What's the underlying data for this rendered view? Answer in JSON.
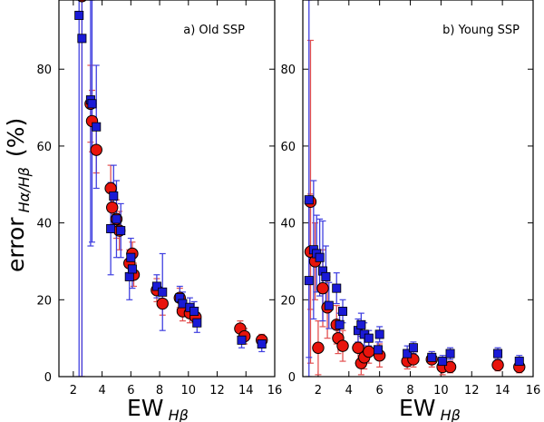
{
  "figure": {
    "ylabel_main": "error",
    "ylabel_sub": "Hα/Hβ",
    "ylabel_unit": "(%)",
    "xlabel_main": "EW",
    "xlabel_sub": "Hβ"
  },
  "colors": {
    "red": "#e8140c",
    "blue": "#1a1ad6",
    "redbar": "#e35050",
    "bluebar": "#4040e0"
  },
  "chart_data": [
    {
      "type": "scatter",
      "title": "a) Old SSP",
      "xlabel": "EW_Hβ",
      "ylabel": "error_Hα/Hβ (%)",
      "xlim": [
        1.0,
        16.0
      ],
      "ylim": [
        0,
        98
      ],
      "xticks": [
        2,
        4,
        6,
        8,
        10,
        12,
        14,
        16
      ],
      "yticks": [
        0,
        20,
        40,
        60,
        80
      ],
      "series": [
        {
          "name": "red circles",
          "marker": "circle",
          "points": [
            {
              "x": 2.6,
              "y": 99,
              "err": 99
            },
            {
              "x": 3.2,
              "y": 71,
              "err": 10
            },
            {
              "x": 3.3,
              "y": 66.5,
              "err": 8
            },
            {
              "x": 3.6,
              "y": 59,
              "err": 6
            },
            {
              "x": 4.6,
              "y": 49,
              "err": 6
            },
            {
              "x": 4.7,
              "y": 44,
              "err": 6
            },
            {
              "x": 5.0,
              "y": 41,
              "err": 5
            },
            {
              "x": 5.2,
              "y": 38,
              "err": 5
            },
            {
              "x": 5.9,
              "y": 29.5,
              "err": 3.5
            },
            {
              "x": 6.1,
              "y": 32,
              "err": 3
            },
            {
              "x": 6.2,
              "y": 26.5,
              "err": 3
            },
            {
              "x": 7.8,
              "y": 22.5,
              "err": 3
            },
            {
              "x": 8.2,
              "y": 19,
              "err": 3
            },
            {
              "x": 9.4,
              "y": 20.5,
              "err": 2.5
            },
            {
              "x": 9.6,
              "y": 17,
              "err": 2.5
            },
            {
              "x": 10.1,
              "y": 16.5,
              "err": 2.5
            },
            {
              "x": 10.5,
              "y": 15.5,
              "err": 2.5
            },
            {
              "x": 13.6,
              "y": 12.5,
              "err": 2
            },
            {
              "x": 13.9,
              "y": 10.5,
              "err": 2
            },
            {
              "x": 15.1,
              "y": 9.5,
              "err": 1.5
            }
          ]
        },
        {
          "name": "blue squares",
          "marker": "square",
          "points": [
            {
              "x": 2.4,
              "y": 94,
              "err": 99
            },
            {
              "x": 2.6,
              "y": 88,
              "err": 99
            },
            {
              "x": 3.2,
              "y": 72,
              "err": 38
            },
            {
              "x": 3.3,
              "y": 71,
              "err": 36
            },
            {
              "x": 3.6,
              "y": 65,
              "err": 16
            },
            {
              "x": 4.6,
              "y": 38.5,
              "err": 12
            },
            {
              "x": 4.8,
              "y": 47,
              "err": 8
            },
            {
              "x": 5.0,
              "y": 41,
              "err": 10
            },
            {
              "x": 5.3,
              "y": 38,
              "err": 7
            },
            {
              "x": 5.9,
              "y": 26,
              "err": 6
            },
            {
              "x": 6.0,
              "y": 31,
              "err": 5
            },
            {
              "x": 6.1,
              "y": 28,
              "err": 5
            },
            {
              "x": 7.8,
              "y": 23.5,
              "err": 3
            },
            {
              "x": 8.2,
              "y": 22,
              "err": 10
            },
            {
              "x": 9.4,
              "y": 20.5,
              "err": 3
            },
            {
              "x": 9.6,
              "y": 19,
              "err": 3
            },
            {
              "x": 10.1,
              "y": 18,
              "err": 2.5
            },
            {
              "x": 10.4,
              "y": 17,
              "err": 2.5
            },
            {
              "x": 10.6,
              "y": 14,
              "err": 2.5
            },
            {
              "x": 13.7,
              "y": 9.5,
              "err": 2
            },
            {
              "x": 15.1,
              "y": 8.5,
              "err": 2
            }
          ]
        }
      ]
    },
    {
      "type": "scatter",
      "title": "b) Young SSP",
      "xlabel": "EW_Hβ",
      "ylabel": "error_Hα/Hβ (%)",
      "xlim": [
        1.0,
        16.0
      ],
      "ylim": [
        0,
        98
      ],
      "xticks": [
        2,
        4,
        6,
        8,
        10,
        12,
        14,
        16
      ],
      "yticks": [
        0,
        20,
        40,
        60,
        80
      ],
      "series": [
        {
          "name": "red circles",
          "marker": "circle",
          "points": [
            {
              "x": 1.5,
              "y": 45.5,
              "err": 42
            },
            {
              "x": 1.5,
              "y": 32.5,
              "err": 15
            },
            {
              "x": 1.8,
              "y": 30,
              "err": 10
            },
            {
              "x": 2.0,
              "y": 7.5,
              "err": 7
            },
            {
              "x": 2.3,
              "y": 23,
              "err": 10
            },
            {
              "x": 2.6,
              "y": 18,
              "err": 8
            },
            {
              "x": 3.2,
              "y": 13.5,
              "err": 5
            },
            {
              "x": 3.3,
              "y": 10,
              "err": 4
            },
            {
              "x": 3.6,
              "y": 8,
              "err": 4
            },
            {
              "x": 4.6,
              "y": 7.5,
              "err": 4
            },
            {
              "x": 4.8,
              "y": 3.5,
              "err": 3
            },
            {
              "x": 5.0,
              "y": 5,
              "err": 3
            },
            {
              "x": 5.3,
              "y": 6.5,
              "err": 3
            },
            {
              "x": 6.0,
              "y": 5.5,
              "err": 3
            },
            {
              "x": 7.8,
              "y": 4,
              "err": 2
            },
            {
              "x": 8.2,
              "y": 4.5,
              "err": 2
            },
            {
              "x": 9.4,
              "y": 4.5,
              "err": 2
            },
            {
              "x": 10.1,
              "y": 2.5,
              "err": 2
            },
            {
              "x": 10.6,
              "y": 2.5,
              "err": 1.5
            },
            {
              "x": 13.7,
              "y": 3,
              "err": 1.5
            },
            {
              "x": 15.1,
              "y": 2.5,
              "err": 1.5
            }
          ]
        },
        {
          "name": "blue squares",
          "marker": "square",
          "points": [
            {
              "x": 1.4,
              "y": 46,
              "err": 99
            },
            {
              "x": 1.4,
              "y": 25,
              "err": 20
            },
            {
              "x": 1.7,
              "y": 33,
              "err": 18
            },
            {
              "x": 1.9,
              "y": 32,
              "err": 10
            },
            {
              "x": 2.1,
              "y": 31,
              "err": 10
            },
            {
              "x": 2.3,
              "y": 27.5,
              "err": 13
            },
            {
              "x": 2.5,
              "y": 26,
              "err": 8
            },
            {
              "x": 2.7,
              "y": 18.5,
              "err": 6
            },
            {
              "x": 3.2,
              "y": 23,
              "err": 4
            },
            {
              "x": 3.4,
              "y": 13.5,
              "err": 3
            },
            {
              "x": 3.6,
              "y": 17,
              "err": 3
            },
            {
              "x": 4.6,
              "y": 12,
              "err": 3
            },
            {
              "x": 4.8,
              "y": 13.5,
              "err": 3
            },
            {
              "x": 5.0,
              "y": 11,
              "err": 3
            },
            {
              "x": 5.3,
              "y": 10,
              "err": 2
            },
            {
              "x": 5.9,
              "y": 7,
              "err": 2
            },
            {
              "x": 6.0,
              "y": 11,
              "err": 2
            },
            {
              "x": 7.8,
              "y": 6,
              "err": 2
            },
            {
              "x": 8.2,
              "y": 7.5,
              "err": 1.5
            },
            {
              "x": 9.4,
              "y": 5,
              "err": 1.5
            },
            {
              "x": 10.1,
              "y": 4,
              "err": 1.5
            },
            {
              "x": 10.6,
              "y": 6,
              "err": 1.5
            },
            {
              "x": 13.7,
              "y": 6,
              "err": 1.5
            },
            {
              "x": 15.1,
              "y": 4,
              "err": 1.5
            }
          ]
        }
      ]
    }
  ]
}
